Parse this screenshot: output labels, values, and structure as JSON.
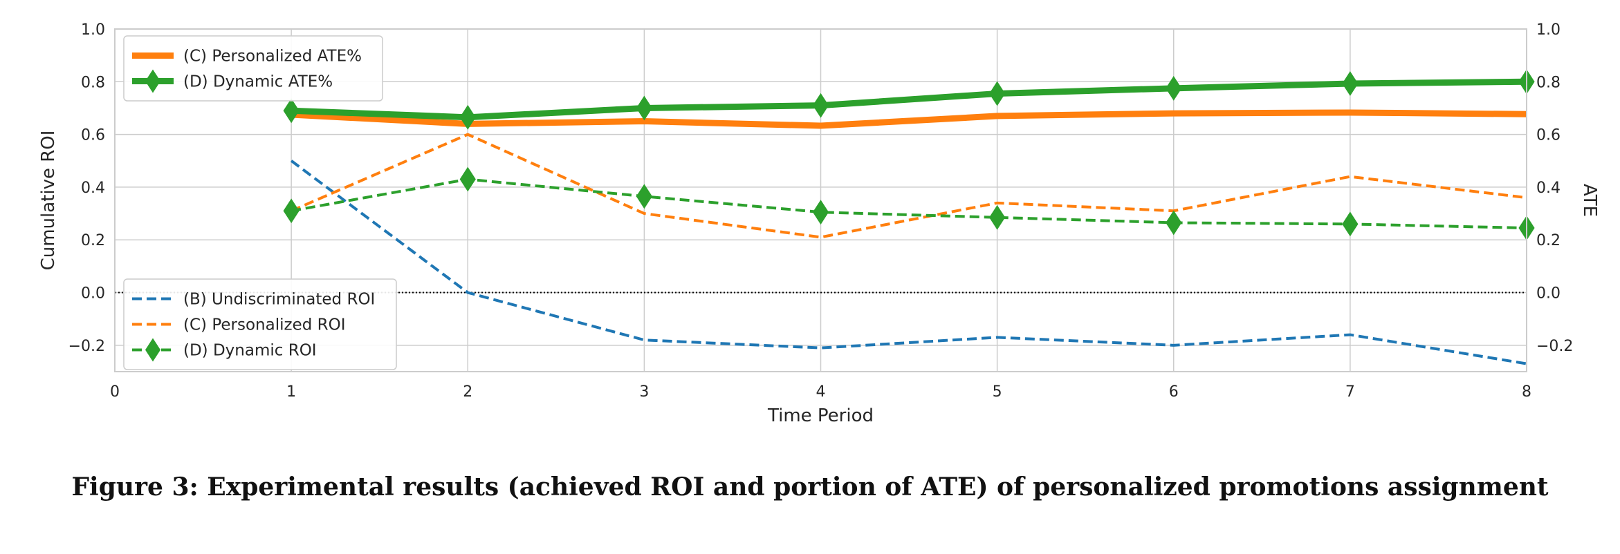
{
  "caption": "Figure 3: Experimental results (achieved ROI and portion of ATE) of personalized promotions assignment",
  "chart_data": {
    "type": "line",
    "xlabel": "Time Period",
    "ylabel_left": "Cumulative ROI",
    "ylabel_right": "ATE",
    "xlim": [
      0,
      8
    ],
    "ylim_left": [
      -0.3,
      1.0
    ],
    "ylim_right": [
      -0.3,
      1.0
    ],
    "xticks": [
      "0",
      "1",
      "2",
      "3",
      "4",
      "5",
      "6",
      "7",
      "8"
    ],
    "yticks_left": [
      "1.0",
      "0.8",
      "0.6",
      "0.4",
      "0.2",
      "0.0",
      "−0.2"
    ],
    "yticks_right": [
      "1.0",
      "0.8",
      "0.6",
      "0.4",
      "0.2",
      "0.0",
      "−0.2"
    ],
    "grid": true,
    "zero_reference_line": true,
    "legend_right_axis": {
      "placement": "upper-left",
      "entries": [
        "(C) Personalized ATE%",
        "(D) Dynamic ATE%"
      ]
    },
    "legend_left_axis": {
      "placement": "lower-left",
      "entries": [
        "(B) Undiscriminated ROI",
        "(C) Personalized ROI",
        "(D) Dynamic ROI"
      ]
    },
    "colors": {
      "blue": "#1f77b4",
      "orange": "#ff7f0e",
      "green": "#2ca02c"
    },
    "series": [
      {
        "name": "(C) Personalized ATE%",
        "axis": "right",
        "style": "solid-thick",
        "color": "#ff7f0e",
        "x": [
          1,
          2,
          3,
          4,
          5,
          6,
          7,
          8
        ],
        "y": [
          0.675,
          0.64,
          0.65,
          0.633,
          0.67,
          0.68,
          0.683,
          0.677
        ]
      },
      {
        "name": "(D) Dynamic ATE%",
        "axis": "right",
        "style": "solid-thick-diamond",
        "color": "#2ca02c",
        "x": [
          1,
          2,
          3,
          4,
          5,
          6,
          7,
          8
        ],
        "y": [
          0.69,
          0.665,
          0.7,
          0.71,
          0.755,
          0.775,
          0.793,
          0.8
        ]
      },
      {
        "name": "(B) Undiscriminated ROI",
        "axis": "left",
        "style": "dashed",
        "color": "#1f77b4",
        "x": [
          1,
          2,
          3,
          4,
          5,
          6,
          7,
          8
        ],
        "y": [
          0.5,
          0.0,
          -0.18,
          -0.21,
          -0.17,
          -0.2,
          -0.16,
          -0.27
        ]
      },
      {
        "name": "(C) Personalized ROI",
        "axis": "left",
        "style": "dashed",
        "color": "#ff7f0e",
        "x": [
          1,
          2,
          3,
          4,
          5,
          6,
          7,
          8
        ],
        "y": [
          0.31,
          0.6,
          0.3,
          0.21,
          0.34,
          0.31,
          0.44,
          0.36
        ]
      },
      {
        "name": "(D) Dynamic ROI",
        "axis": "left",
        "style": "dashed-diamond",
        "color": "#2ca02c",
        "x": [
          1,
          2,
          3,
          4,
          5,
          6,
          7,
          8
        ],
        "y": [
          0.31,
          0.43,
          0.365,
          0.305,
          0.285,
          0.265,
          0.26,
          0.245
        ]
      }
    ]
  }
}
